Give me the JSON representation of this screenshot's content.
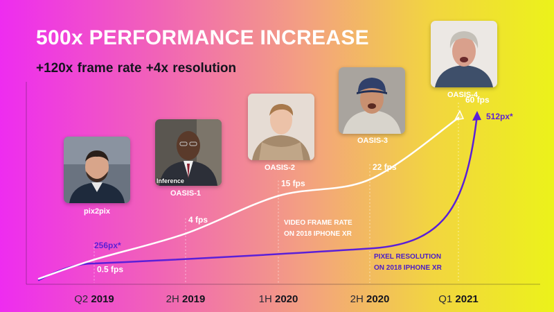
{
  "slide": {
    "title": "500x PERFORMANCE INCREASE",
    "subtitle": "+120x frame rate  +4x resolution"
  },
  "colors": {
    "fps_line": "#ffffff",
    "resolution_line": "#5a1fd8"
  },
  "models": [
    {
      "name": "pix2pix",
      "photo_icon": "man-beard-portrait"
    },
    {
      "name": "OASIS-1",
      "photo_icon": "man-suit-portrait",
      "photo_overlay_text": "Inference"
    },
    {
      "name": "OASIS-2",
      "photo_icon": "young-man-portrait"
    },
    {
      "name": "OASIS-3",
      "photo_icon": "older-man-cap-portrait"
    },
    {
      "name": "OASIS-4",
      "photo_icon": "grey-haired-man-portrait"
    }
  ],
  "chart_data": {
    "type": "line",
    "title": "500x PERFORMANCE INCREASE",
    "x_ticks": [
      {
        "prefix": "Q2",
        "year": "2019"
      },
      {
        "prefix": "2H",
        "year": "2019"
      },
      {
        "prefix": "1H",
        "year": "2020"
      },
      {
        "prefix": "2H",
        "year": "2020"
      },
      {
        "prefix": "Q1",
        "year": "2021"
      }
    ],
    "series": [
      {
        "name": "Video frame rate on 2018 iPhone XR",
        "note_lines": [
          "VIDEO FRAME RATE",
          "ON 2018 IPHONE XR"
        ],
        "unit": "fps",
        "values": [
          0.5,
          4,
          15,
          22,
          60
        ],
        "labels": [
          "0.5 fps",
          "4 fps",
          "15 fps",
          "22 fps",
          "60 fps"
        ]
      },
      {
        "name": "Pixel resolution on 2018 iPhone XR",
        "note_lines": [
          "PIXEL RESOLUTION",
          "ON 2018 IPHONE XR"
        ],
        "unit": "px",
        "values": [
          256,
          512
        ],
        "labels": [
          "256px*",
          "512px*"
        ]
      }
    ]
  }
}
